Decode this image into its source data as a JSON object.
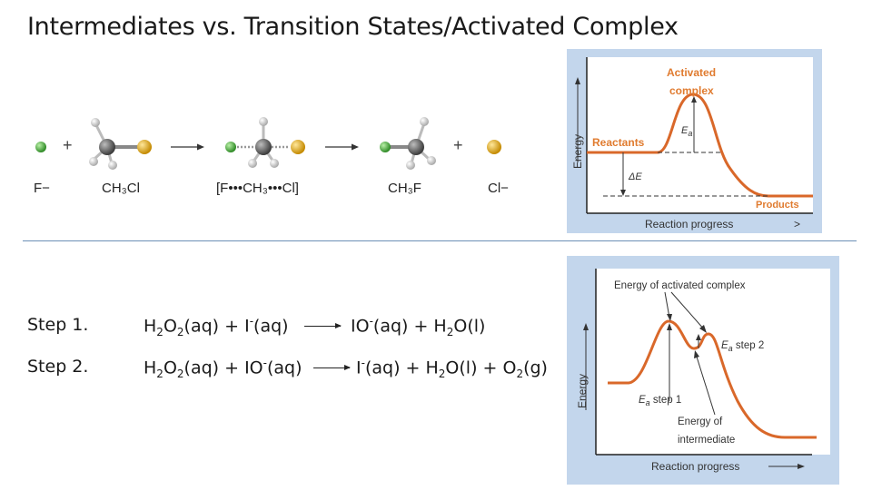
{
  "title": "Intermediates vs. Transition States/Activated Complex",
  "reaction": {
    "species_labels": [
      "F−",
      "CH₃Cl",
      "[F•••CH₃•••Cl]",
      "CH₃F",
      "Cl−"
    ],
    "plus": "+"
  },
  "steps": [
    {
      "label": "Step 1.",
      "reactants": [
        "H",
        "2",
        "O",
        "2",
        "(aq) + I",
        "-",
        "(aq)"
      ],
      "products": [
        "IO",
        "-",
        "(aq) + H",
        "2",
        "O(l)"
      ]
    },
    {
      "label": "Step 2.",
      "reactants": [
        "H",
        "2",
        "O",
        "2",
        "(aq) + IO",
        "-",
        "(aq)"
      ],
      "products": [
        "I",
        "-",
        "(aq) + H",
        "2",
        "O(l) + O",
        "2",
        "(g)"
      ]
    }
  ],
  "diagram_top": {
    "y_axis": "Energy",
    "x_axis": "Reaction progress",
    "peak_label_line1": "Activated",
    "peak_label_line2": "complex",
    "reactants_label": "Reactants",
    "products_label": "Products",
    "ea_label": "E",
    "ea_sub": "a",
    "delta_e_label": "ΔE",
    "curve_color": "#d9682a",
    "accent_color": "#e07b2f"
  },
  "diagram_bottom": {
    "y_axis": "Energy",
    "x_axis": "Reaction progress",
    "complex_label": "Energy of activated complex",
    "ea2_label": "E",
    "ea2_sub": "a",
    "ea2_suffix": " step 2",
    "ea1_label": "E",
    "ea1_sub": "a",
    "ea1_suffix": " step 1",
    "intermediate_line1": "Energy of",
    "intermediate_line2": "intermediate",
    "curve_color": "#d9682a"
  },
  "colors": {
    "panel_bg": "#c3d6ec",
    "divider": "#6c8fb6",
    "fluorine": "#4caf3f",
    "chlorine": "#e0a81c",
    "carbon": "#6b6b6b",
    "hydrogen": "#f2f2f2"
  }
}
